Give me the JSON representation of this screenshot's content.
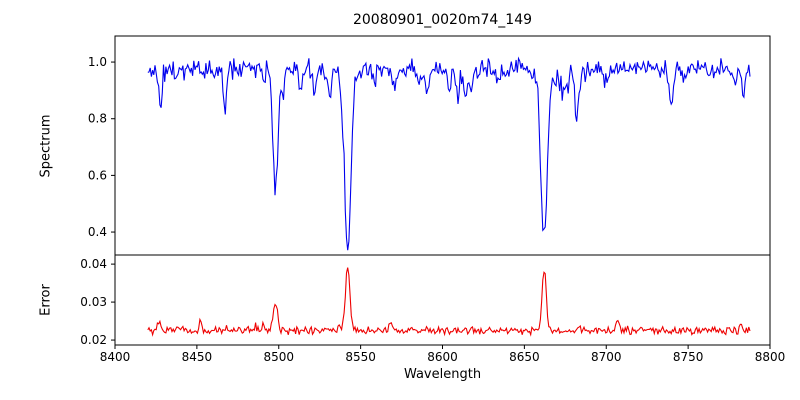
{
  "chart_data": {
    "type": "line",
    "title": "20080901_0020m74_149",
    "xlabel": "Wavelength",
    "grid": false,
    "legend": null,
    "x_axis_range": [
      8400,
      8800
    ],
    "x_data_range": [
      8420,
      8788
    ],
    "x_tick_values": [
      8400,
      8450,
      8500,
      8550,
      8600,
      8650,
      8700,
      8750,
      8800
    ],
    "x_tick_labels": [
      "8400",
      "8450",
      "8500",
      "8550",
      "8600",
      "8650",
      "8700",
      "8750",
      "8800"
    ],
    "noise_seed": 13,
    "panels": [
      {
        "ylabel": "Spectrum",
        "color": "#0000ee",
        "ylim": [
          0.319,
          1.092
        ],
        "y_tick_values": [
          0.4,
          0.6,
          0.8,
          1.0
        ],
        "y_tick_labels": [
          "0.4",
          "0.6",
          "0.8",
          "1.0"
        ],
        "continuum": 0.975,
        "noise_amplitude": 0.045,
        "minor_feature_count": 48,
        "absorption_lines": [
          {
            "center": 8498.0,
            "core_flux": 0.54,
            "sigma": 1.5
          },
          {
            "center": 8542.1,
            "core_flux": 0.36,
            "sigma": 2.0
          },
          {
            "center": 8662.1,
            "core_flux": 0.37,
            "sigma": 2.0
          }
        ]
      },
      {
        "ylabel": "Error",
        "color": "#ee0000",
        "ylim": [
          0.0187,
          0.0424
        ],
        "y_tick_values": [
          0.02,
          0.03,
          0.04
        ],
        "y_tick_labels": [
          "0.02",
          "0.03",
          "0.04"
        ],
        "baseline": 0.0225,
        "noise_amplitude": 0.0012,
        "minor_spike_count": 22,
        "spikes": [
          {
            "center": 8498.0,
            "peak": 0.03,
            "sigma": 1.2
          },
          {
            "center": 8542.1,
            "peak": 0.04,
            "sigma": 1.3
          },
          {
            "center": 8662.1,
            "peak": 0.038,
            "sigma": 1.3
          }
        ]
      }
    ]
  }
}
